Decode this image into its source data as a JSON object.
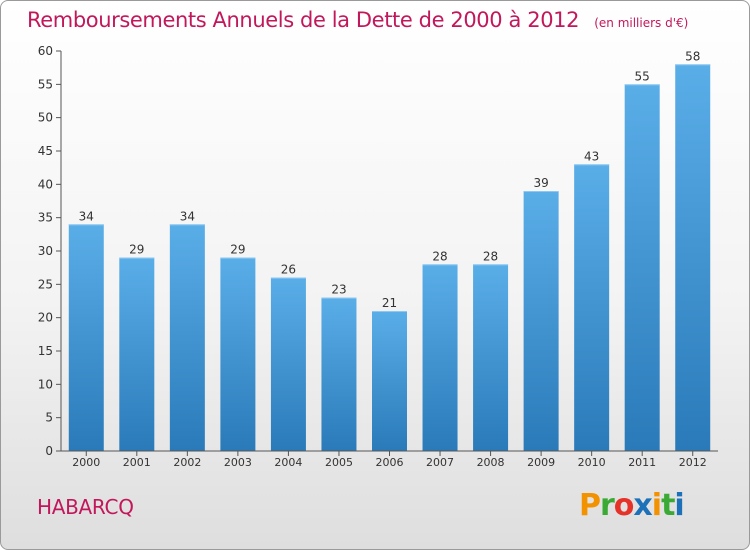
{
  "header": {
    "title": "Remboursements Annuels de la Dette de 2000 à 2012",
    "unit": "(en milliers d'€)"
  },
  "footer": {
    "commune": "HABARCQ",
    "logo": "Proxiti",
    "logo_colors": [
      "#f39200",
      "#3aaa35",
      "#e6332a",
      "#1d71b8",
      "#f39200",
      "#3aaa35",
      "#1d71b8"
    ]
  },
  "colors": {
    "bar_light": "#5aaee8",
    "bar_dark": "#2a7ab9",
    "axis": "#555555",
    "text": "#333333",
    "accent": "#c2185b"
  },
  "chart_data": {
    "type": "bar",
    "categories": [
      "2000",
      "2001",
      "2002",
      "2003",
      "2004",
      "2005",
      "2006",
      "2007",
      "2008",
      "2009",
      "2010",
      "2011",
      "2012"
    ],
    "values": [
      34,
      29,
      34,
      29,
      26,
      23,
      21,
      28,
      28,
      39,
      43,
      55,
      58
    ],
    "ylim": [
      0,
      60
    ],
    "yticks": [
      0,
      5,
      10,
      15,
      20,
      25,
      30,
      35,
      40,
      45,
      50,
      55,
      60
    ],
    "grid": false,
    "legend": "none"
  }
}
